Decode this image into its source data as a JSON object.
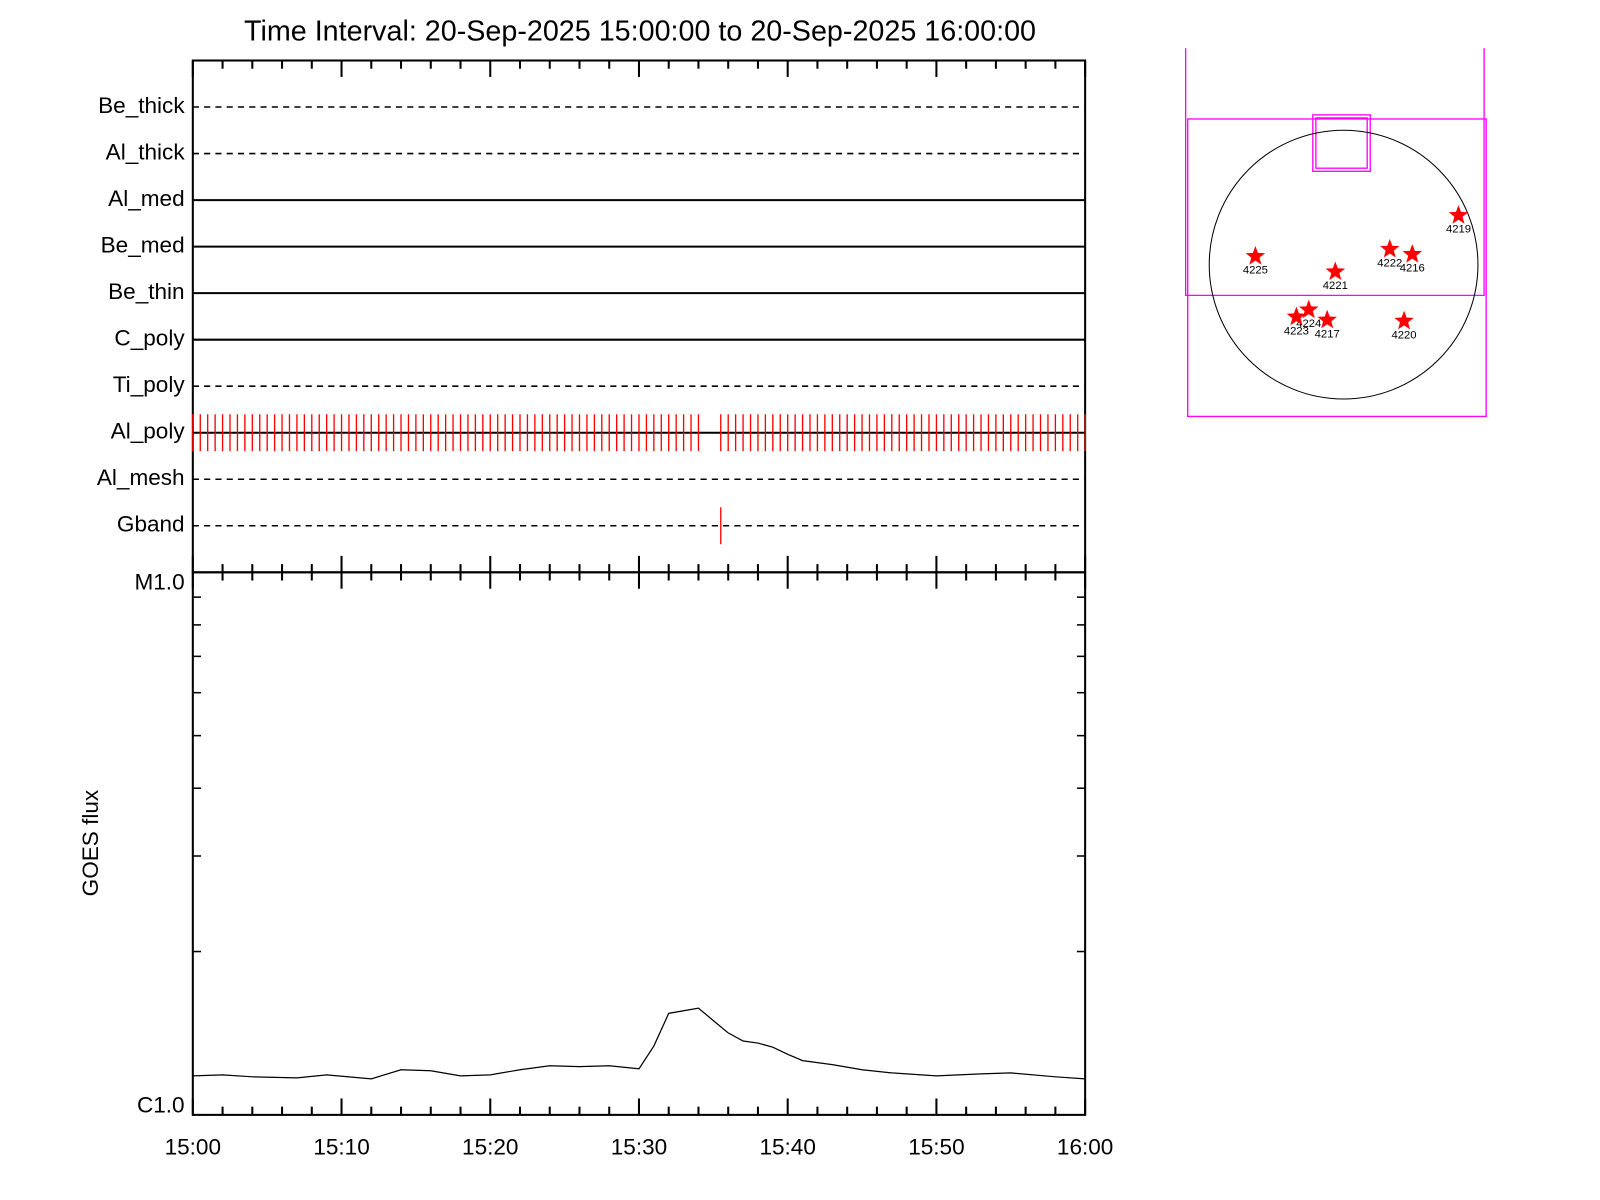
{
  "chart_data": [
    {
      "type": "filter_timeline",
      "title": "Time Interval: 20-Sep-2025 15:00:00 to 20-Sep-2025 16:00:00",
      "event_color": "#ff0000",
      "rows": [
        {
          "name": "Be_thick",
          "style": "dashed"
        },
        {
          "name": "Al_thick",
          "style": "dashed"
        },
        {
          "name": "Al_med",
          "style": "solid"
        },
        {
          "name": "Be_med",
          "style": "solid"
        },
        {
          "name": "Be_thin",
          "style": "solid"
        },
        {
          "name": "C_poly",
          "style": "solid"
        },
        {
          "name": "Ti_poly",
          "style": "dashed"
        },
        {
          "name": "Al_poly",
          "style": "solid",
          "events": [
            "15:00:00",
            "15:00:30",
            "15:01:00",
            "15:01:30",
            "15:02:00",
            "15:02:30",
            "15:03:00",
            "15:03:30",
            "15:04:00",
            "15:04:30",
            "15:05:00",
            "15:05:30",
            "15:06:00",
            "15:06:30",
            "15:07:00",
            "15:07:30",
            "15:08:00",
            "15:08:30",
            "15:09:00",
            "15:09:30",
            "15:10:00",
            "15:10:30",
            "15:11:00",
            "15:11:30",
            "15:12:00",
            "15:12:30",
            "15:13:00",
            "15:13:30",
            "15:14:00",
            "15:14:30",
            "15:15:00",
            "15:15:30",
            "15:16:00",
            "15:16:30",
            "15:17:00",
            "15:17:30",
            "15:18:00",
            "15:18:30",
            "15:19:00",
            "15:19:30",
            "15:20:00",
            "15:20:30",
            "15:21:00",
            "15:21:30",
            "15:22:00",
            "15:22:30",
            "15:23:00",
            "15:23:30",
            "15:24:00",
            "15:24:30",
            "15:25:00",
            "15:25:30",
            "15:26:00",
            "15:26:30",
            "15:27:00",
            "15:27:30",
            "15:28:00",
            "15:28:30",
            "15:29:00",
            "15:29:30",
            "15:30:00",
            "15:30:30",
            "15:31:00",
            "15:31:30",
            "15:32:00",
            "15:32:30",
            "15:33:00",
            "15:33:30",
            "15:34:00",
            "15:35:30",
            "15:36:00",
            "15:36:30",
            "15:37:00",
            "15:37:30",
            "15:38:00",
            "15:38:30",
            "15:39:00",
            "15:39:30",
            "15:40:00",
            "15:40:30",
            "15:41:00",
            "15:41:30",
            "15:42:00",
            "15:42:30",
            "15:43:00",
            "15:43:30",
            "15:44:00",
            "15:44:30",
            "15:45:00",
            "15:45:30",
            "15:46:00",
            "15:46:30",
            "15:47:00",
            "15:47:30",
            "15:48:00",
            "15:48:30",
            "15:49:00",
            "15:49:30",
            "15:50:00",
            "15:50:30",
            "15:51:00",
            "15:51:30",
            "15:52:00",
            "15:52:30",
            "15:53:00",
            "15:53:30",
            "15:54:00",
            "15:54:30",
            "15:55:00",
            "15:55:30",
            "15:56:00",
            "15:56:30",
            "15:57:00",
            "15:57:30",
            "15:58:00",
            "15:58:30",
            "15:59:00",
            "15:59:30",
            "16:00:00"
          ]
        },
        {
          "name": "Al_mesh",
          "style": "dashed"
        },
        {
          "name": "Gband",
          "style": "dashed",
          "events": [
            "15:35:30"
          ]
        }
      ]
    },
    {
      "type": "line",
      "ylabel": "GOES flux",
      "color": "#000000",
      "log_scale": true,
      "x": [
        "15:00",
        "15:02",
        "15:04",
        "15:07",
        "15:09",
        "15:12",
        "15:14",
        "15:16",
        "15:18",
        "15:20",
        "15:22",
        "15:24",
        "15:26",
        "15:28",
        "15:30",
        "15:31",
        "15:32",
        "15:34",
        "15:35",
        "15:36",
        "15:37",
        "15:38",
        "15:39",
        "15:40",
        "15:41",
        "15:43",
        "15:45",
        "15:47",
        "15:50",
        "15:53",
        "15:55",
        "15:58",
        "16:00"
      ],
      "values": [
        1.18e-06,
        1.185e-06,
        1.175e-06,
        1.17e-06,
        1.185e-06,
        1.165e-06,
        1.211e-06,
        1.206e-06,
        1.18e-06,
        1.185e-06,
        1.211e-06,
        1.232e-06,
        1.227e-06,
        1.232e-06,
        1.216e-06,
        1.339e-06,
        1.539e-06,
        1.573e-06,
        1.492e-06,
        1.416e-06,
        1.368e-06,
        1.356e-06,
        1.333e-06,
        1.293e-06,
        1.259e-06,
        1.238e-06,
        1.211e-06,
        1.195e-06,
        1.18e-06,
        1.19e-06,
        1.195e-06,
        1.175e-06,
        1.165e-06
      ],
      "xlim": [
        "15:00",
        "16:00"
      ],
      "xticks": [
        "15:00",
        "15:10",
        "15:20",
        "15:30",
        "15:40",
        "15:50",
        "16:00"
      ],
      "minor_xticks": [
        "15:02",
        "15:04",
        "15:06",
        "15:08",
        "15:12",
        "15:14",
        "15:16",
        "15:18",
        "15:22",
        "15:24",
        "15:26",
        "15:28",
        "15:32",
        "15:34",
        "15:36",
        "15:38",
        "15:42",
        "15:44",
        "15:46",
        "15:48",
        "15:52",
        "15:54",
        "15:56",
        "15:58"
      ],
      "ylim": [
        1e-06,
        1e-05
      ],
      "yticks": [
        {
          "value": 1e-06,
          "label": "C1.0"
        },
        {
          "value": 1e-05,
          "label": "M1.0"
        }
      ],
      "minor_yticks": [
        2e-06,
        3e-06,
        4e-06,
        5e-06,
        6e-06,
        7e-06,
        8e-06,
        9e-06
      ]
    },
    {
      "type": "sun_map",
      "marker_color": "#ff0000",
      "labels": [
        "4219",
        "4225",
        "4221",
        "4222",
        "4216",
        "4224",
        "4223",
        "4217",
        "4220"
      ],
      "x": [
        821,
        -630,
        -59,
        330,
        491,
        -249,
        -337,
        -117,
        432
      ],
      "y": [
        352,
        59,
        -51,
        110,
        73,
        -323,
        -374,
        -396,
        -403
      ]
    }
  ]
}
